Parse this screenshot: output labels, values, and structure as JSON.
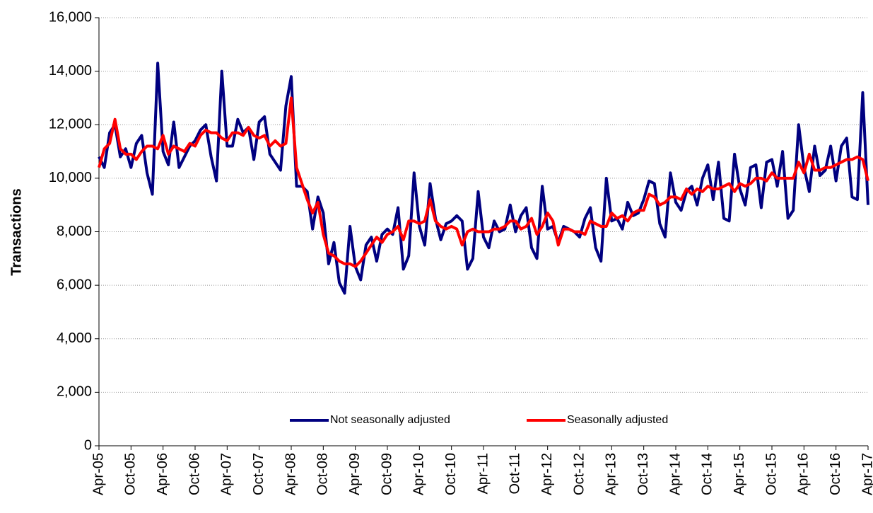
{
  "chart_data": {
    "type": "line",
    "y_label": "Transactions",
    "categories": [
      "Apr-05",
      null,
      null,
      null,
      null,
      null,
      "Oct-05",
      null,
      null,
      null,
      null,
      null,
      "Apr-06",
      null,
      null,
      null,
      null,
      null,
      "Oct-06",
      null,
      null,
      null,
      null,
      null,
      "Apr-07",
      null,
      null,
      null,
      null,
      null,
      "Oct-07",
      null,
      null,
      null,
      null,
      null,
      "Apr-08",
      null,
      null,
      null,
      null,
      null,
      "Oct-08",
      null,
      null,
      null,
      null,
      null,
      "Apr-09",
      null,
      null,
      null,
      null,
      null,
      "Oct-09",
      null,
      null,
      null,
      null,
      null,
      "Apr-10",
      null,
      null,
      null,
      null,
      null,
      "Oct-10",
      null,
      null,
      null,
      null,
      null,
      "Apr-11",
      null,
      null,
      null,
      null,
      null,
      "Oct-11",
      null,
      null,
      null,
      null,
      null,
      "Apr-12",
      null,
      null,
      null,
      null,
      null,
      "Oct-12",
      null,
      null,
      null,
      null,
      null,
      "Apr-13",
      null,
      null,
      null,
      null,
      null,
      "Oct-13",
      null,
      null,
      null,
      null,
      null,
      "Apr-14",
      null,
      null,
      null,
      null,
      null,
      "Oct-14",
      null,
      null,
      null,
      null,
      null,
      "Apr-15",
      null,
      null,
      null,
      null,
      null,
      "Oct-15",
      null,
      null,
      null,
      null,
      null,
      "Apr-16",
      null,
      null,
      null,
      null,
      null,
      "Oct-16",
      null,
      null,
      null,
      null,
      null,
      "Apr-17"
    ],
    "series": [
      {
        "name": "Not seasonally adjusted",
        "color": "#000080",
        "values": [
          10800,
          10400,
          11700,
          12000,
          10800,
          11100,
          10400,
          11300,
          11600,
          10200,
          9400,
          14300,
          11000,
          10500,
          12100,
          10400,
          10800,
          11200,
          11400,
          11800,
          12000,
          10800,
          9900,
          14000,
          11200,
          11200,
          12200,
          11700,
          11900,
          10700,
          12100,
          12300,
          10900,
          10600,
          10300,
          12700,
          13800,
          9700,
          9700,
          9500,
          8100,
          9300,
          8700,
          6800,
          7600,
          6100,
          5700,
          8200,
          6700,
          6200,
          7500,
          7800,
          6900,
          7900,
          8100,
          7900,
          8900,
          6600,
          7100,
          10200,
          8200,
          7500,
          9800,
          8500,
          7700,
          8300,
          8400,
          8600,
          8400,
          6600,
          7000,
          9500,
          7800,
          7400,
          8400,
          8000,
          8100,
          9000,
          8000,
          8600,
          8900,
          7400,
          7000,
          9700,
          8100,
          8200,
          7600,
          8200,
          8100,
          8000,
          7800,
          8500,
          8900,
          7400,
          6900,
          10000,
          8400,
          8500,
          8100,
          9100,
          8600,
          8700,
          9200,
          9900,
          9800,
          8300,
          7800,
          10200,
          9100,
          8800,
          9500,
          9700,
          9000,
          10000,
          10500,
          9200,
          10600,
          8500,
          8400,
          10900,
          9600,
          9000,
          10400,
          10500,
          8900,
          10600,
          10700,
          9700,
          11000,
          8500,
          8800,
          12000,
          10400,
          9500,
          11200,
          10100,
          10300,
          11200,
          9900,
          11200,
          11500,
          9300,
          9200,
          13200,
          9000
        ]
      },
      {
        "name": "Seasonally adjusted",
        "color": "#ff0000",
        "values": [
          10400,
          11100,
          11300,
          12200,
          11100,
          10900,
          10900,
          10700,
          11000,
          11200,
          11200,
          11100,
          11600,
          10900,
          11200,
          11100,
          11000,
          11300,
          11200,
          11600,
          11800,
          11700,
          11700,
          11500,
          11400,
          11700,
          11700,
          11600,
          11900,
          11600,
          11500,
          11600,
          11200,
          11400,
          11200,
          11300,
          13000,
          10400,
          9800,
          9200,
          8700,
          9100,
          7900,
          7200,
          7100,
          6900,
          6800,
          6800,
          6700,
          6900,
          7200,
          7500,
          7800,
          7600,
          7900,
          8000,
          8200,
          7700,
          8400,
          8400,
          8300,
          8400,
          9200,
          8400,
          8200,
          8100,
          8200,
          8100,
          7500,
          8000,
          8100,
          8000,
          8000,
          8000,
          8100,
          8100,
          8200,
          8400,
          8400,
          8100,
          8200,
          8500,
          7900,
          8200,
          8700,
          8400,
          7500,
          8100,
          8100,
          8000,
          8000,
          7900,
          8400,
          8300,
          8200,
          8200,
          8700,
          8500,
          8600,
          8400,
          8700,
          8800,
          8800,
          9400,
          9300,
          9000,
          9100,
          9300,
          9300,
          9200,
          9600,
          9400,
          9600,
          9500,
          9700,
          9600,
          9600,
          9700,
          9800,
          9500,
          9800,
          9700,
          9800,
          10000,
          10000,
          9900,
          10200,
          10000,
          10000,
          10000,
          10000,
          10600,
          10200,
          10900,
          10300,
          10300,
          10400,
          10400,
          10500,
          10600,
          10700,
          10700,
          10800,
          10700,
          9900
        ]
      }
    ],
    "ylim": [
      0,
      16000
    ],
    "yticks": [
      0,
      {
        "value": 2000,
        "label": "2,000"
      },
      {
        "value": 4000,
        "label": "4,000"
      },
      {
        "value": 6000,
        "label": "6,000"
      },
      {
        "value": 8000,
        "label": "8,000"
      },
      {
        "value": 10000,
        "label": "10,000"
      },
      {
        "value": 12000,
        "label": "12,000"
      },
      {
        "value": 14000,
        "label": "14,000"
      },
      {
        "value": 16000,
        "label": "16,000"
      }
    ],
    "grid": true,
    "legend": "bottom"
  }
}
